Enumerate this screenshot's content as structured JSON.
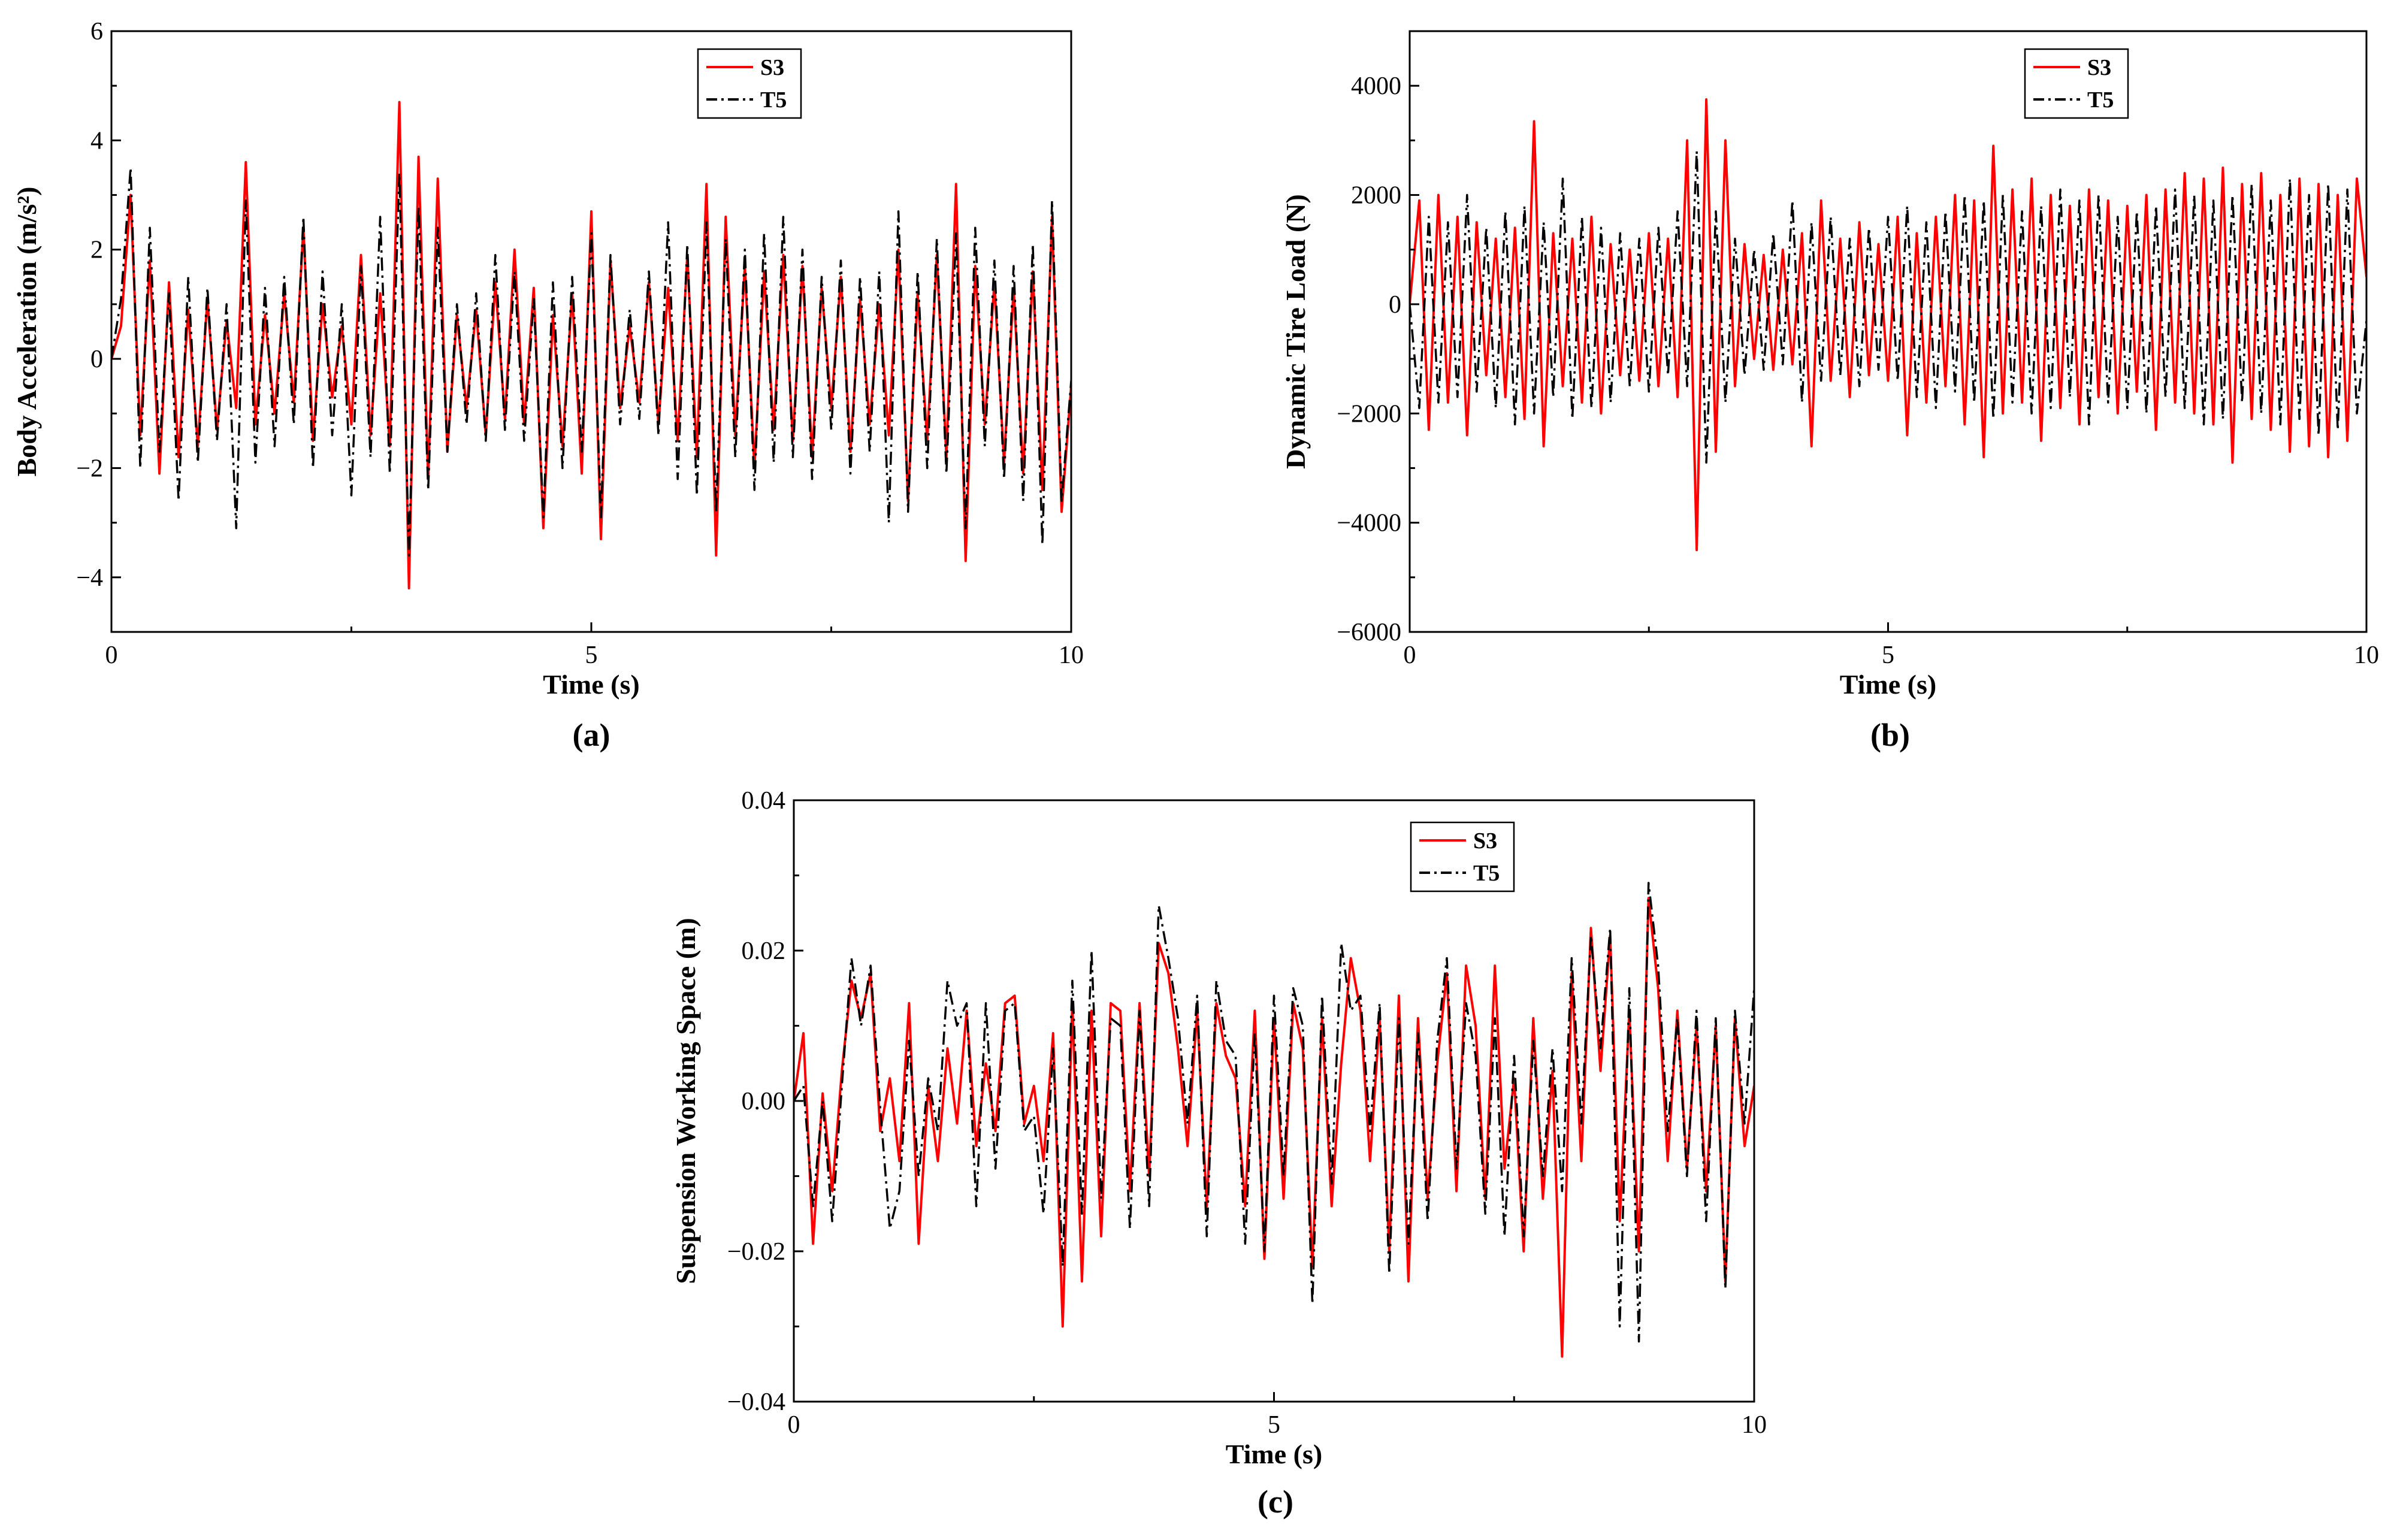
{
  "figure": {
    "panels": [
      "(a)",
      "(b)",
      "(c)"
    ]
  },
  "colors": {
    "S3": "#ff0000",
    "T5": "#000000"
  },
  "chart_data": [
    {
      "id": "a",
      "type": "line",
      "panel_label": "(a)",
      "title": "",
      "xlabel": "Time (s)",
      "ylabel": "Body Acceleration (m/s²)",
      "xlim": [
        0,
        10
      ],
      "ylim": [
        -5,
        6
      ],
      "xticks": [
        0,
        5,
        10
      ],
      "xtick_labels": [
        "0",
        "5",
        "10"
      ],
      "yticks": [
        -4,
        -2,
        0,
        2,
        4,
        6
      ],
      "ytick_labels": [
        "−4",
        "−2",
        "0",
        "2",
        "4",
        "6"
      ],
      "legend": [
        "S3",
        "T5"
      ],
      "legend_position": "top-right",
      "grid": false,
      "x": [
        0,
        0.1,
        0.2,
        0.3,
        0.4,
        0.5,
        0.6,
        0.7,
        0.8,
        0.9,
        1.0,
        1.1,
        1.2,
        1.3,
        1.4,
        1.5,
        1.6,
        1.7,
        1.8,
        1.9,
        2.0,
        2.1,
        2.2,
        2.3,
        2.4,
        2.5,
        2.6,
        2.7,
        2.8,
        2.9,
        3.0,
        3.1,
        3.2,
        3.3,
        3.4,
        3.5,
        3.6,
        3.7,
        3.8,
        3.9,
        4.0,
        4.1,
        4.2,
        4.3,
        4.4,
        4.5,
        4.6,
        4.7,
        4.8,
        4.9,
        5.0,
        5.1,
        5.2,
        5.3,
        5.4,
        5.5,
        5.6,
        5.7,
        5.8,
        5.9,
        6.0,
        6.1,
        6.2,
        6.3,
        6.4,
        6.5,
        6.6,
        6.7,
        6.8,
        6.9,
        7.0,
        7.1,
        7.2,
        7.3,
        7.4,
        7.5,
        7.6,
        7.7,
        7.8,
        7.9,
        8.0,
        8.1,
        8.2,
        8.3,
        8.4,
        8.5,
        8.6,
        8.7,
        8.8,
        8.9,
        9.0,
        9.1,
        9.2,
        9.3,
        9.4,
        9.5,
        9.6,
        9.7,
        9.8,
        9.9,
        10.0
      ],
      "series": [
        {
          "name": "S3",
          "values": [
            0,
            0.6,
            3.0,
            -1.4,
            1.8,
            -2.1,
            1.4,
            -1.8,
            0.9,
            -1.6,
            1.1,
            -1.3,
            0.7,
            -0.9,
            3.6,
            -1.2,
            0.8,
            -1.0,
            1.2,
            -0.8,
            2.4,
            -1.5,
            1.0,
            -0.7,
            0.6,
            -1.2,
            1.9,
            -1.4,
            1.2,
            -1.6,
            4.7,
            -4.2,
            3.7,
            -2.2,
            3.3,
            -1.7,
            0.8,
            -0.9,
            0.9,
            -1.4,
            1.4,
            -1.1,
            2.0,
            -1.2,
            1.3,
            -3.1,
            0.8,
            -1.6,
            1.2,
            -2.1,
            2.7,
            -3.3,
            1.8,
            -0.9,
            0.6,
            -0.8,
            1.4,
            -1.2,
            1.3,
            -1.5,
            1.9,
            -1.8,
            3.2,
            -3.6,
            2.6,
            -1.4,
            1.7,
            -2.0,
            1.6,
            -1.3,
            1.9,
            -1.5,
            1.7,
            -1.8,
            1.3,
            -0.9,
            1.5,
            -1.7,
            1.1,
            -1.2,
            1.0,
            -1.4,
            2.0,
            -2.6,
            1.2,
            -1.5,
            1.9,
            -1.8,
            3.2,
            -3.7,
            1.7,
            -1.2,
            1.4,
            -1.9,
            1.3,
            -2.1,
            1.6,
            -2.4,
            2.6,
            -2.8,
            -0.5
          ]
        },
        {
          "name": "T5",
          "values": [
            0,
            1.1,
            3.5,
            -2.0,
            2.4,
            -1.7,
            1.2,
            -2.6,
            1.5,
            -1.9,
            1.3,
            -1.5,
            1.0,
            -3.1,
            2.9,
            -1.9,
            1.3,
            -1.6,
            1.5,
            -1.2,
            2.6,
            -2.0,
            1.6,
            -1.4,
            1.0,
            -2.5,
            1.7,
            -1.8,
            2.6,
            -2.1,
            3.4,
            -3.6,
            2.8,
            -2.4,
            2.4,
            -1.7,
            1.0,
            -1.2,
            1.2,
            -1.5,
            1.9,
            -1.3,
            1.6,
            -1.5,
            1.1,
            -2.9,
            1.4,
            -2.0,
            1.5,
            -1.7,
            2.3,
            -2.9,
            1.9,
            -1.2,
            0.9,
            -1.1,
            1.6,
            -1.4,
            2.5,
            -2.2,
            2.1,
            -2.5,
            2.5,
            -2.8,
            2.2,
            -1.8,
            2.0,
            -2.4,
            2.3,
            -1.9,
            2.6,
            -1.8,
            2.0,
            -2.2,
            1.5,
            -1.3,
            1.8,
            -2.1,
            1.5,
            -1.7,
            1.6,
            -3.0,
            2.7,
            -2.8,
            1.6,
            -2.0,
            2.2,
            -2.1,
            2.3,
            -3.1,
            2.4,
            -1.6,
            1.8,
            -2.2,
            1.7,
            -2.6,
            2.1,
            -3.4,
            2.9,
            -2.6,
            -0.4
          ]
        }
      ]
    },
    {
      "id": "b",
      "type": "line",
      "panel_label": "(b)",
      "title": "",
      "xlabel": "Time (s)",
      "ylabel": "Dynamic Tire Load (N)",
      "xlim": [
        0,
        10
      ],
      "ylim": [
        -6000,
        5000
      ],
      "xticks": [
        0,
        5,
        10
      ],
      "xtick_labels": [
        "0",
        "5",
        "10"
      ],
      "yticks": [
        -6000,
        -4000,
        -2000,
        0,
        2000,
        4000
      ],
      "ytick_labels": [
        "−6000",
        "−4000",
        "−2000",
        "0",
        "2000",
        "4000"
      ],
      "legend": [
        "S3",
        "T5"
      ],
      "legend_position": "top-right",
      "grid": false,
      "x": [
        0,
        0.1,
        0.2,
        0.3,
        0.4,
        0.5,
        0.6,
        0.7,
        0.8,
        0.9,
        1.0,
        1.1,
        1.2,
        1.3,
        1.4,
        1.5,
        1.6,
        1.7,
        1.8,
        1.9,
        2.0,
        2.1,
        2.2,
        2.3,
        2.4,
        2.5,
        2.6,
        2.7,
        2.8,
        2.9,
        3.0,
        3.1,
        3.2,
        3.3,
        3.4,
        3.5,
        3.6,
        3.7,
        3.8,
        3.9,
        4.0,
        4.1,
        4.2,
        4.3,
        4.4,
        4.5,
        4.6,
        4.7,
        4.8,
        4.9,
        5.0,
        5.1,
        5.2,
        5.3,
        5.4,
        5.5,
        5.6,
        5.7,
        5.8,
        5.9,
        6.0,
        6.1,
        6.2,
        6.3,
        6.4,
        6.5,
        6.6,
        6.7,
        6.8,
        6.9,
        7.0,
        7.1,
        7.2,
        7.3,
        7.4,
        7.5,
        7.6,
        7.7,
        7.8,
        7.9,
        8.0,
        8.1,
        8.2,
        8.3,
        8.4,
        8.5,
        8.6,
        8.7,
        8.8,
        8.9,
        9.0,
        9.1,
        9.2,
        9.3,
        9.4,
        9.5,
        9.6,
        9.7,
        9.8,
        9.9,
        10.0
      ],
      "series": [
        {
          "name": "S3",
          "values": [
            0,
            1900,
            -2300,
            2000,
            -1800,
            1600,
            -2400,
            1500,
            -1300,
            1200,
            -1700,
            1400,
            -2100,
            3350,
            -2600,
            1300,
            -1500,
            1200,
            -1800,
            1600,
            -2000,
            1100,
            -1300,
            1000,
            -1400,
            1300,
            -1500,
            1200,
            -1700,
            3000,
            -4500,
            3750,
            -2700,
            3000,
            -1500,
            1100,
            -1000,
            900,
            -1200,
            1000,
            -1100,
            1300,
            -2600,
            1900,
            -1400,
            1200,
            -1700,
            1500,
            -1300,
            1100,
            -1400,
            1600,
            -2400,
            1300,
            -1800,
            1600,
            -1500,
            2000,
            -2200,
            1900,
            -2800,
            2900,
            -2000,
            2100,
            -1800,
            2300,
            -2500,
            2000,
            -1900,
            1800,
            -2200,
            2100,
            -1700,
            1900,
            -2000,
            1800,
            -1600,
            2000,
            -2300,
            2100,
            -1800,
            2400,
            -2000,
            2300,
            -2200,
            2500,
            -2900,
            2200,
            -2100,
            2400,
            -2300,
            2000,
            -2700,
            2300,
            -2600,
            2200,
            -2800,
            2000,
            -2500,
            2300,
            500
          ]
        },
        {
          "name": "T5",
          "values": [
            0,
            -1900,
            1600,
            -1800,
            1500,
            -1700,
            2000,
            -1600,
            1400,
            -1900,
            1700,
            -2200,
            1800,
            -2000,
            1500,
            -1700,
            2300,
            -2100,
            1600,
            -1900,
            1400,
            -1800,
            1300,
            -1500,
            1200,
            -1600,
            1400,
            -1300,
            1700,
            -1500,
            2800,
            -2900,
            1700,
            -1800,
            1200,
            -1300,
            1000,
            -1200,
            1300,
            -1100,
            1900,
            -1800,
            1500,
            -1400,
            1600,
            -1300,
            1200,
            -1500,
            1400,
            -1200,
            1600,
            -1400,
            1800,
            -1700,
            1500,
            -1900,
            1700,
            -1600,
            2000,
            -1800,
            1900,
            -2100,
            2000,
            -1800,
            1700,
            -2000,
            1800,
            -1900,
            2100,
            -1700,
            1900,
            -2200,
            2000,
            -1800,
            1600,
            -1900,
            1700,
            -2000,
            1800,
            -1700,
            2100,
            -1900,
            2000,
            -2200,
            1900,
            -2100,
            2000,
            -1800,
            2200,
            -2000,
            1900,
            -2200,
            2300,
            -2100,
            2000,
            -2400,
            2200,
            -2300,
            2100,
            -2000,
            -300
          ]
        }
      ]
    },
    {
      "id": "c",
      "type": "line",
      "panel_label": "(c)",
      "title": "",
      "xlabel": "Time (s)",
      "ylabel": "Suspension Working Space (m)",
      "xlim": [
        0,
        10
      ],
      "ylim": [
        -0.04,
        0.04
      ],
      "xticks": [
        0,
        5,
        10
      ],
      "xtick_labels": [
        "0",
        "5",
        "10"
      ],
      "yticks": [
        -0.04,
        -0.02,
        0.0,
        0.02,
        0.04
      ],
      "ytick_labels": [
        "−0.04",
        "−0.02",
        "0.00",
        "0.02",
        "0.04"
      ],
      "legend": [
        "S3",
        "T5"
      ],
      "legend_position": "top-right",
      "grid": false,
      "x": [
        0,
        0.1,
        0.2,
        0.3,
        0.4,
        0.5,
        0.6,
        0.7,
        0.8,
        0.9,
        1.0,
        1.1,
        1.2,
        1.3,
        1.4,
        1.5,
        1.6,
        1.7,
        1.8,
        1.9,
        2.0,
        2.1,
        2.2,
        2.3,
        2.4,
        2.5,
        2.6,
        2.7,
        2.8,
        2.9,
        3.0,
        3.1,
        3.2,
        3.3,
        3.4,
        3.5,
        3.6,
        3.7,
        3.8,
        3.9,
        4.0,
        4.1,
        4.2,
        4.3,
        4.4,
        4.5,
        4.6,
        4.7,
        4.8,
        4.9,
        5.0,
        5.1,
        5.2,
        5.3,
        5.4,
        5.5,
        5.6,
        5.7,
        5.8,
        5.9,
        6.0,
        6.1,
        6.2,
        6.3,
        6.4,
        6.5,
        6.6,
        6.7,
        6.8,
        6.9,
        7.0,
        7.1,
        7.2,
        7.3,
        7.4,
        7.5,
        7.6,
        7.7,
        7.8,
        7.9,
        8.0,
        8.1,
        8.2,
        8.3,
        8.4,
        8.5,
        8.6,
        8.7,
        8.8,
        8.9,
        9.0,
        9.1,
        9.2,
        9.3,
        9.4,
        9.5,
        9.6,
        9.7,
        9.8,
        9.9,
        10.0
      ],
      "series": [
        {
          "name": "S3",
          "values": [
            0.0,
            0.009,
            -0.019,
            0.001,
            -0.012,
            0.004,
            0.016,
            0.011,
            0.017,
            -0.004,
            0.003,
            -0.008,
            0.013,
            -0.019,
            0.002,
            -0.008,
            0.007,
            -0.003,
            0.012,
            -0.006,
            0.005,
            -0.004,
            0.013,
            0.014,
            -0.003,
            0.002,
            -0.008,
            0.009,
            -0.03,
            0.013,
            -0.024,
            0.012,
            -0.018,
            0.013,
            0.012,
            -0.012,
            0.013,
            -0.01,
            0.021,
            0.017,
            0.007,
            -0.006,
            0.012,
            -0.014,
            0.013,
            0.006,
            0.003,
            -0.014,
            0.012,
            -0.021,
            0.011,
            -0.013,
            0.013,
            0.007,
            -0.022,
            0.011,
            -0.014,
            0.005,
            0.019,
            0.012,
            -0.008,
            0.011,
            -0.02,
            0.014,
            -0.024,
            0.011,
            -0.013,
            0.005,
            0.017,
            -0.012,
            0.018,
            0.01,
            -0.013,
            0.018,
            -0.009,
            0.003,
            -0.02,
            0.011,
            -0.013,
            0.004,
            -0.034,
            0.017,
            -0.008,
            0.023,
            0.004,
            0.022,
            -0.016,
            0.012,
            -0.02,
            0.027,
            0.015,
            -0.008,
            0.012,
            -0.009,
            0.01,
            -0.012,
            0.01,
            -0.024,
            0.011,
            -0.006,
            0.002
          ]
        },
        {
          "name": "T5",
          "values": [
            0.0,
            0.002,
            -0.014,
            0.0,
            -0.016,
            0.002,
            0.019,
            0.01,
            0.018,
            -0.001,
            -0.017,
            -0.012,
            0.008,
            -0.01,
            0.003,
            -0.004,
            0.016,
            0.01,
            0.013,
            -0.014,
            0.013,
            -0.009,
            0.012,
            0.013,
            -0.004,
            -0.002,
            -0.015,
            0.007,
            -0.022,
            0.016,
            -0.015,
            0.02,
            -0.013,
            0.011,
            0.01,
            -0.017,
            0.012,
            -0.014,
            0.026,
            0.019,
            0.011,
            -0.003,
            0.014,
            -0.018,
            0.016,
            0.008,
            0.006,
            -0.019,
            0.009,
            -0.02,
            0.014,
            -0.01,
            0.015,
            0.01,
            -0.027,
            0.014,
            -0.011,
            0.021,
            0.012,
            0.014,
            -0.004,
            0.013,
            -0.023,
            0.011,
            -0.019,
            0.009,
            -0.016,
            0.008,
            0.019,
            -0.009,
            0.013,
            0.006,
            -0.015,
            0.011,
            -0.018,
            0.006,
            -0.018,
            0.008,
            -0.01,
            0.007,
            -0.012,
            0.019,
            -0.003,
            0.022,
            0.007,
            0.023,
            -0.03,
            0.015,
            -0.032,
            0.029,
            0.018,
            -0.004,
            0.011,
            -0.01,
            0.012,
            -0.016,
            0.011,
            -0.025,
            0.012,
            -0.003,
            0.015
          ]
        }
      ]
    }
  ]
}
